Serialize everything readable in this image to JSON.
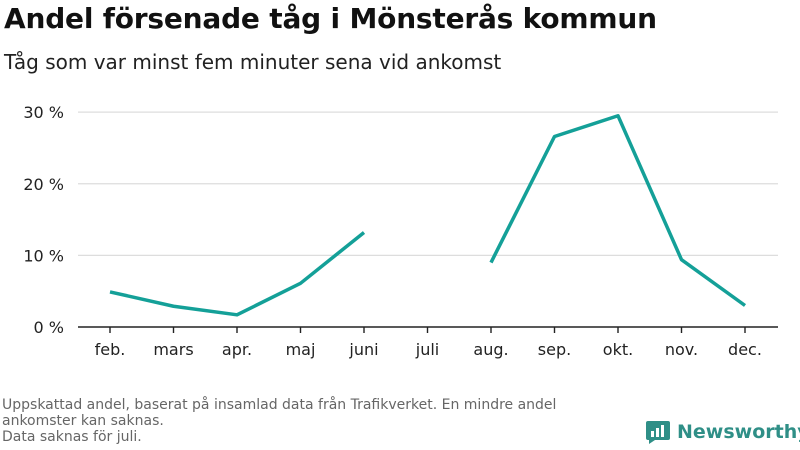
{
  "title": "Andel försenade tåg i Mönsterås kommun",
  "subtitle": "Tåg som var minst fem minuter sena vid ankomst",
  "footnote": {
    "line1": "Uppskattad andel, baserat på insamlad data från Trafikverket. En mindre andel ankomster kan saknas.",
    "line2": "Data saknas för juli."
  },
  "brand": {
    "name": "Newsworthy",
    "icon": "newsworthy-logo-icon",
    "color": "#2f8f87"
  },
  "colors": {
    "line": "#14a098",
    "grid": "#dddddd",
    "axis": "#222222",
    "tick_text": "#222222"
  },
  "chart_data": {
    "type": "line",
    "categories": [
      "feb.",
      "mars",
      "apr.",
      "maj",
      "juni",
      "juli",
      "aug.",
      "sep.",
      "okt.",
      "nov.",
      "dec."
    ],
    "series": [
      {
        "values": [
          4.9,
          2.9,
          1.7,
          6.1,
          13.2,
          null,
          9.0,
          26.6,
          29.5,
          9.4,
          3.0
        ]
      }
    ],
    "ylim": [
      0,
      31
    ],
    "yticks": [
      0,
      10,
      20,
      30
    ],
    "ytick_labels": [
      "0 %",
      "10 %",
      "20 %",
      "30 %"
    ],
    "xlabel": "",
    "ylabel": "",
    "grid": "horizontal"
  }
}
